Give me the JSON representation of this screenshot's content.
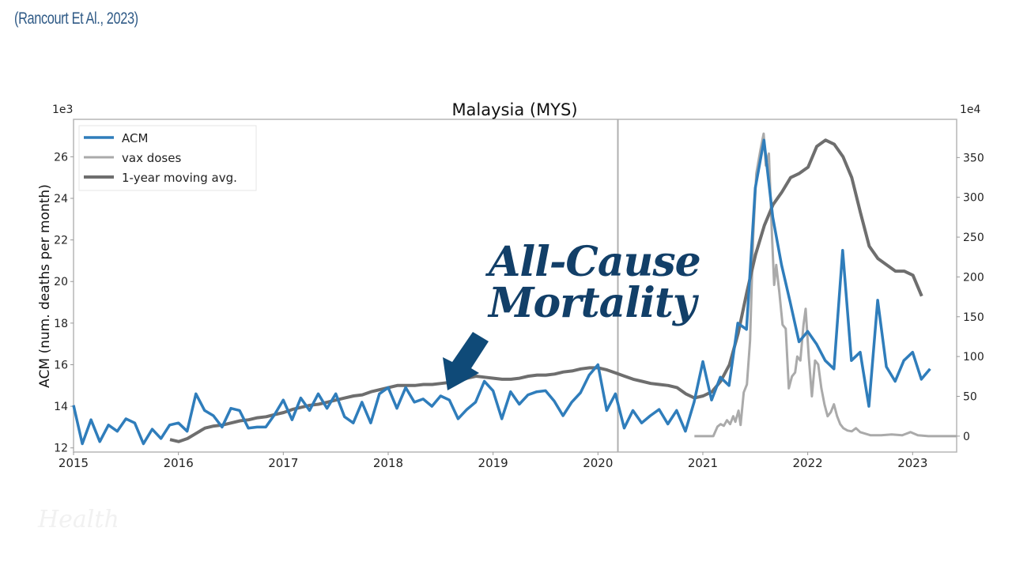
{
  "citation": "(Rancourt Et Al., 2023)",
  "watermark": "Health",
  "annotation": {
    "line1": "All-Cause",
    "line2": "Mortality",
    "color": "#123f68"
  },
  "chart_data": {
    "type": "line",
    "title": "Malaysia (MYS)",
    "ylabel": "ACM (num. deaths per month)",
    "y_multiplier_left": "1e3",
    "y_multiplier_right": "1e4",
    "xlim": [
      2015,
      2023.42
    ],
    "ylim_left": [
      11.8,
      27.8
    ],
    "ylim_right": [
      -20,
      398
    ],
    "x_ticks": [
      2015,
      2016,
      2017,
      2018,
      2019,
      2020,
      2021,
      2022,
      2023
    ],
    "y_ticks_left": [
      12,
      14,
      16,
      18,
      20,
      22,
      24,
      26
    ],
    "y_ticks_right": [
      0,
      50,
      100,
      150,
      200,
      250,
      300,
      350
    ],
    "grid": false,
    "legend_position": "top-left",
    "vline_x": 2020.19,
    "series": [
      {
        "name": "ACM",
        "axis": "left",
        "color": "#2f7dbb",
        "x_start": 2015.0,
        "x_step_months": 1,
        "values": [
          14.05,
          12.2,
          13.35,
          12.3,
          13.1,
          12.8,
          13.4,
          13.2,
          12.2,
          12.9,
          12.45,
          13.1,
          13.2,
          12.8,
          14.6,
          13.8,
          13.55,
          13.0,
          13.9,
          13.8,
          12.95,
          13.0,
          13.0,
          13.6,
          14.3,
          13.35,
          14.4,
          13.8,
          14.6,
          13.9,
          14.6,
          13.5,
          13.2,
          14.2,
          13.2,
          14.6,
          14.9,
          13.9,
          14.9,
          14.2,
          14.35,
          14.0,
          14.5,
          14.3,
          13.4,
          13.85,
          14.2,
          15.2,
          14.75,
          13.4,
          14.7,
          14.1,
          14.55,
          14.7,
          14.75,
          14.25,
          13.55,
          14.2,
          14.65,
          15.5,
          16.0,
          13.8,
          14.6,
          12.95,
          13.8,
          13.2,
          13.55,
          13.85,
          13.15,
          13.8,
          12.8,
          14.2,
          16.15,
          14.3,
          15.4,
          15.0,
          18.0,
          17.7,
          24.5,
          26.8,
          23.1,
          20.8,
          19.0,
          17.1,
          17.6,
          17.0,
          16.2,
          15.8,
          21.5,
          16.2,
          16.6,
          14.0,
          19.1,
          15.9,
          15.2,
          16.2,
          16.6,
          15.3,
          15.8
        ]
      },
      {
        "name": "vax doses",
        "axis": "right",
        "color": "#aaaaaa",
        "points": [
          [
            2020.92,
            0
          ],
          [
            2021.1,
            0
          ],
          [
            2021.14,
            12
          ],
          [
            2021.17,
            15
          ],
          [
            2021.2,
            13
          ],
          [
            2021.23,
            20
          ],
          [
            2021.26,
            15
          ],
          [
            2021.29,
            25
          ],
          [
            2021.31,
            18
          ],
          [
            2021.34,
            32
          ],
          [
            2021.36,
            14
          ],
          [
            2021.39,
            55
          ],
          [
            2021.42,
            65
          ],
          [
            2021.45,
            120
          ],
          [
            2021.48,
            250
          ],
          [
            2021.51,
            330
          ],
          [
            2021.55,
            360
          ],
          [
            2021.58,
            380
          ],
          [
            2021.6,
            340
          ],
          [
            2021.63,
            355
          ],
          [
            2021.66,
            250
          ],
          [
            2021.68,
            190
          ],
          [
            2021.7,
            215
          ],
          [
            2021.73,
            180
          ],
          [
            2021.76,
            140
          ],
          [
            2021.79,
            135
          ],
          [
            2021.82,
            60
          ],
          [
            2021.85,
            75
          ],
          [
            2021.88,
            80
          ],
          [
            2021.9,
            100
          ],
          [
            2021.93,
            95
          ],
          [
            2021.96,
            140
          ],
          [
            2021.98,
            160
          ],
          [
            2022.01,
            100
          ],
          [
            2022.04,
            50
          ],
          [
            2022.07,
            95
          ],
          [
            2022.1,
            90
          ],
          [
            2022.13,
            60
          ],
          [
            2022.16,
            40
          ],
          [
            2022.19,
            25
          ],
          [
            2022.22,
            30
          ],
          [
            2022.25,
            40
          ],
          [
            2022.28,
            25
          ],
          [
            2022.31,
            15
          ],
          [
            2022.34,
            10
          ],
          [
            2022.38,
            7
          ],
          [
            2022.42,
            6
          ],
          [
            2022.46,
            10
          ],
          [
            2022.5,
            5
          ],
          [
            2022.55,
            3
          ],
          [
            2022.6,
            1
          ],
          [
            2022.7,
            1
          ],
          [
            2022.8,
            2
          ],
          [
            2022.9,
            1
          ],
          [
            2022.98,
            5
          ],
          [
            2023.05,
            1
          ],
          [
            2023.15,
            0
          ],
          [
            2023.42,
            0
          ]
        ]
      },
      {
        "name": "1-year moving avg.",
        "axis": "left",
        "color": "#6e6e6e",
        "x_start": 2015.92,
        "x_step_months": 1,
        "values": [
          12.4,
          12.3,
          12.45,
          12.7,
          12.95,
          13.05,
          13.1,
          13.2,
          13.3,
          13.35,
          13.45,
          13.5,
          13.6,
          13.7,
          13.85,
          13.95,
          14.05,
          14.1,
          14.2,
          14.3,
          14.4,
          14.5,
          14.55,
          14.7,
          14.8,
          14.9,
          15.0,
          15.0,
          15.0,
          15.05,
          15.05,
          15.1,
          15.15,
          15.2,
          15.35,
          15.45,
          15.4,
          15.35,
          15.3,
          15.3,
          15.35,
          15.45,
          15.5,
          15.5,
          15.55,
          15.65,
          15.7,
          15.8,
          15.85,
          15.85,
          15.75,
          15.6,
          15.45,
          15.3,
          15.2,
          15.1,
          15.05,
          15.0,
          14.9,
          14.6,
          14.4,
          14.5,
          14.7,
          15.2,
          16.0,
          17.5,
          19.5,
          21.3,
          22.7,
          23.7,
          24.3,
          25.0,
          25.2,
          25.5,
          26.5,
          26.8,
          26.6,
          26.0,
          25.0,
          23.3,
          21.7,
          21.1,
          20.8,
          20.5,
          20.5,
          20.3,
          19.3
        ]
      }
    ]
  }
}
